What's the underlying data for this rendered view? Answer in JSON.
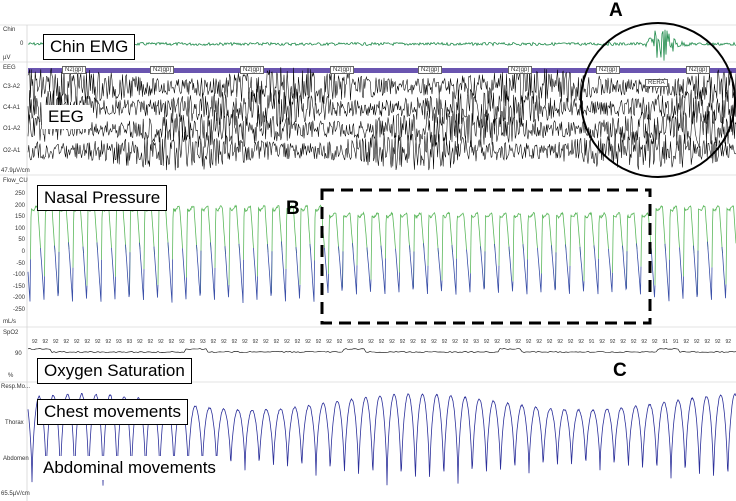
{
  "channels": {
    "chin": {
      "name": "Chin",
      "scale_top": "0",
      "unit": "µV"
    },
    "eeg": {
      "name": "EEG",
      "leads": [
        "C3-A2",
        "C4-A1",
        "O1-A2",
        "O2-A1"
      ],
      "scale": "47.9µV/cm"
    },
    "flow": {
      "name": "Flow_CU",
      "ticks": [
        "250",
        "200",
        "150",
        "100",
        "50",
        "0",
        "-50",
        "-100",
        "-150",
        "-200",
        "-250"
      ],
      "unit": "mL/s"
    },
    "spo2": {
      "name": "SpO2",
      "tick": "90",
      "unit": "%",
      "readings": [
        "92",
        "92",
        "92",
        "92",
        "92",
        "92",
        "92",
        "92",
        "93",
        "93",
        "92",
        "92",
        "92",
        "92",
        "92",
        "92",
        "93",
        "92",
        "92",
        "92",
        "92",
        "92",
        "92",
        "92",
        "92",
        "92",
        "92",
        "92",
        "92",
        "92",
        "93",
        "93",
        "92",
        "92",
        "92",
        "92",
        "92",
        "92",
        "92",
        "92",
        "92",
        "92",
        "93",
        "92",
        "92",
        "93",
        "92",
        "92",
        "92",
        "92",
        "92",
        "92",
        "92",
        "91",
        "92",
        "92",
        "92",
        "92",
        "92",
        "92",
        "91",
        "91",
        "92",
        "92",
        "92",
        "92",
        "92"
      ]
    },
    "resp": {
      "name": "Resp.Mo...",
      "thorax": "Thorax",
      "abdomen": "Abdomen",
      "scale": "65.5µV/cm"
    }
  },
  "stage_label": "N2(gp)",
  "stage_count": 8,
  "event_label": "RERA",
  "annotations": {
    "chin_emg": "Chin EMG",
    "eeg": "EEG",
    "nasal_pressure": "Nasal Pressure",
    "oxygen_saturation": "Oxygen Saturation",
    "chest_movements": "Chest movements",
    "abdominal_movements": "Abdominal movements"
  },
  "markers": {
    "a": "A",
    "b": "B",
    "c": "C"
  },
  "colors": {
    "emg_green": "#1e8a4a",
    "flow_green": "#5cb85c",
    "flow_blue": "#3a4fa8",
    "resp_blue": "#2b2f9a",
    "stage_bar": "#6a55b0",
    "eeg_black": "#000000"
  }
}
